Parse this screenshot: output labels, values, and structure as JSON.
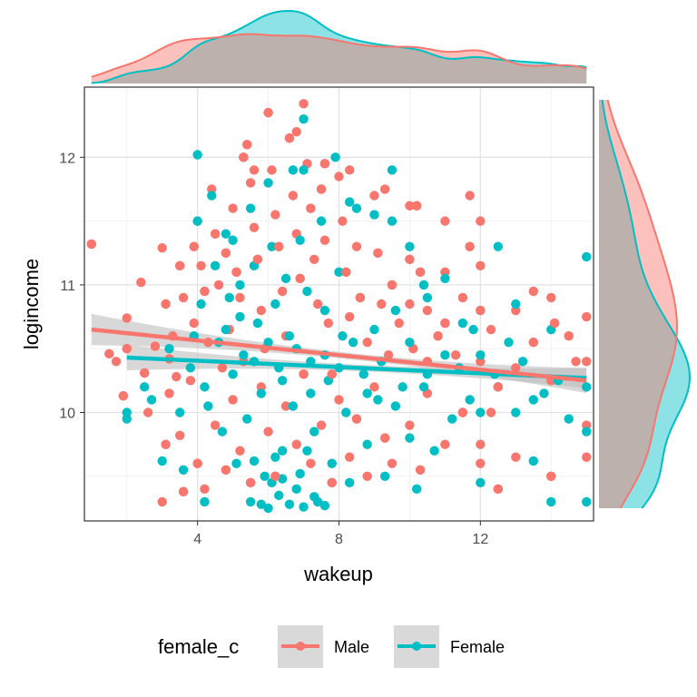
{
  "chart_data": {
    "type": "scatter",
    "xlabel": "wakeup",
    "ylabel": "logincome",
    "xlim": [
      0.8,
      15.2
    ],
    "ylim": [
      9.15,
      12.55
    ],
    "x_ticks": [
      4,
      8,
      12
    ],
    "y_ticks": [
      10,
      11,
      12
    ],
    "x_tick_labels": [
      "4",
      "8",
      "12"
    ],
    "y_tick_labels": [
      "10",
      "11",
      "12"
    ],
    "grid": true,
    "legend": {
      "title": "female_c",
      "position": "bottom",
      "entries": [
        "Male",
        "Female"
      ]
    },
    "colors": {
      "Male": "#F8766D",
      "Female": "#00BFC4",
      "band": "#BEBEBE"
    },
    "series": [
      {
        "name": "Male",
        "points": [
          [
            1,
            11.32
          ],
          [
            1.5,
            10.46
          ],
          [
            1.7,
            10.4
          ],
          [
            1.9,
            10.13
          ],
          [
            2,
            10.74
          ],
          [
            2.4,
            11.02
          ],
          [
            2.5,
            10.31
          ],
          [
            2.8,
            10.52
          ],
          [
            3,
            11.29
          ],
          [
            3.1,
            10.85
          ],
          [
            3.2,
            10.42
          ],
          [
            3.3,
            10.6
          ],
          [
            3.5,
            11.15
          ],
          [
            3.6,
            10.9
          ],
          [
            3.8,
            10.25
          ],
          [
            3.9,
            11.3
          ],
          [
            3.9,
            10.7
          ],
          [
            3.0,
            9.3
          ],
          [
            3.1,
            9.75
          ],
          [
            3.2,
            10.15
          ],
          [
            3.5,
            9.82
          ],
          [
            3.6,
            9.38
          ],
          [
            4.0,
            11.5
          ],
          [
            4.1,
            11.15
          ],
          [
            4.2,
            10.95
          ],
          [
            4.3,
            10.55
          ],
          [
            4.4,
            11.75
          ],
          [
            4.5,
            11.4
          ],
          [
            4.6,
            11.0
          ],
          [
            4.7,
            10.35
          ],
          [
            4.8,
            11.25
          ],
          [
            4.9,
            10.65
          ],
          [
            5.0,
            11.6
          ],
          [
            5.1,
            11.1
          ],
          [
            5.2,
            10.9
          ],
          [
            5.3,
            10.4
          ],
          [
            5.4,
            12.1
          ],
          [
            5.5,
            11.8
          ],
          [
            5.6,
            11.45
          ],
          [
            5.7,
            11.2
          ],
          [
            5.8,
            10.8
          ],
          [
            5.9,
            10.5
          ],
          [
            6.0,
            12.35
          ],
          [
            6.1,
            11.9
          ],
          [
            6.2,
            11.55
          ],
          [
            6.3,
            11.3
          ],
          [
            6.4,
            10.95
          ],
          [
            6.5,
            10.6
          ],
          [
            6.6,
            12.15
          ],
          [
            6.7,
            11.7
          ],
          [
            6.8,
            11.4
          ],
          [
            6.9,
            11.05
          ],
          [
            7.0,
            12.42
          ],
          [
            7.1,
            11.95
          ],
          [
            7.2,
            11.6
          ],
          [
            7.3,
            11.2
          ],
          [
            7.4,
            10.85
          ],
          [
            7.5,
            11.75
          ],
          [
            7.6,
            11.35
          ],
          [
            7.7,
            10.7
          ],
          [
            7.8,
            10.3
          ],
          [
            8.0,
            11.85
          ],
          [
            8.1,
            11.5
          ],
          [
            8.2,
            11.1
          ],
          [
            8.3,
            10.75
          ],
          [
            8.5,
            11.3
          ],
          [
            8.6,
            10.9
          ],
          [
            8.8,
            10.55
          ],
          [
            9.0,
            11.7
          ],
          [
            9.1,
            11.25
          ],
          [
            9.2,
            10.85
          ],
          [
            9.4,
            10.45
          ],
          [
            9.5,
            11.0
          ],
          [
            9.7,
            10.7
          ],
          [
            10.0,
            11.62
          ],
          [
            10.0,
            11.2
          ],
          [
            10.0,
            10.85
          ],
          [
            10.1,
            10.5
          ],
          [
            10.3,
            11.1
          ],
          [
            10.5,
            10.8
          ],
          [
            10.5,
            10.4
          ],
          [
            10.8,
            10.6
          ],
          [
            11.0,
            11.5
          ],
          [
            11.0,
            11.1
          ],
          [
            11.0,
            10.7
          ],
          [
            11.3,
            10.45
          ],
          [
            11.5,
            10.9
          ],
          [
            11.7,
            11.3
          ],
          [
            12.0,
            11.5
          ],
          [
            12.0,
            11.15
          ],
          [
            12.0,
            10.8
          ],
          [
            12.0,
            10.4
          ],
          [
            12.3,
            10.65
          ],
          [
            12.5,
            10.2
          ],
          [
            13.0,
            10.8
          ],
          [
            13.0,
            10.35
          ],
          [
            13.5,
            10.55
          ],
          [
            14.0,
            10.9
          ],
          [
            14.0,
            10.25
          ],
          [
            14.5,
            10.6
          ],
          [
            15.0,
            10.75
          ],
          [
            15.0,
            10.4
          ],
          [
            4.0,
            9.6
          ],
          [
            4.2,
            9.4
          ],
          [
            4.5,
            9.9
          ],
          [
            4.8,
            9.55
          ],
          [
            5.0,
            10.1
          ],
          [
            5.2,
            9.7
          ],
          [
            5.5,
            9.45
          ],
          [
            5.8,
            10.2
          ],
          [
            6.0,
            9.85
          ],
          [
            6.2,
            9.5
          ],
          [
            6.5,
            10.05
          ],
          [
            6.8,
            9.75
          ],
          [
            7.0,
            10.3
          ],
          [
            7.2,
            9.6
          ],
          [
            7.5,
            9.9
          ],
          [
            7.8,
            9.45
          ],
          [
            8.0,
            10.1
          ],
          [
            8.3,
            9.65
          ],
          [
            8.5,
            9.95
          ],
          [
            8.8,
            9.5
          ],
          [
            9.0,
            10.2
          ],
          [
            9.3,
            9.8
          ],
          [
            9.5,
            9.6
          ],
          [
            10.0,
            9.9
          ],
          [
            10.3,
            9.55
          ],
          [
            10.5,
            10.15
          ],
          [
            11.0,
            9.75
          ],
          [
            11.5,
            10.0
          ],
          [
            12.0,
            9.6
          ],
          [
            12.0,
            9.75
          ],
          [
            12.5,
            9.4
          ],
          [
            12.3,
            10.0
          ],
          [
            13.0,
            9.65
          ],
          [
            14.0,
            9.5
          ],
          [
            15.0,
            9.65
          ],
          [
            15.0,
            9.9
          ],
          [
            2,
            10.5
          ],
          [
            2.6,
            10.0
          ],
          [
            3.4,
            10.28
          ],
          [
            5.3,
            12.0
          ],
          [
            5.6,
            11.9
          ],
          [
            6.8,
            12.2
          ],
          [
            7.6,
            11.95
          ],
          [
            8.3,
            11.9
          ],
          [
            9.3,
            11.75
          ],
          [
            10.2,
            11.62
          ],
          [
            11.7,
            11.7
          ],
          [
            13.5,
            10.95
          ],
          [
            14.1,
            10.7
          ],
          [
            14.7,
            10.4
          ]
        ]
      },
      {
        "name": "Female",
        "points": [
          [
            2.0,
            10.0
          ],
          [
            2.0,
            9.95
          ],
          [
            2.5,
            10.2
          ],
          [
            2.7,
            10.1
          ],
          [
            3.0,
            9.62
          ],
          [
            3.2,
            10.5
          ],
          [
            3.5,
            10.0
          ],
          [
            3.6,
            9.55
          ],
          [
            3.8,
            10.35
          ],
          [
            4.0,
            12.02
          ],
          [
            4.0,
            11.5
          ],
          [
            4.1,
            10.85
          ],
          [
            4.2,
            10.2
          ],
          [
            4.2,
            9.3
          ],
          [
            4.4,
            11.7
          ],
          [
            4.5,
            11.15
          ],
          [
            4.6,
            10.55
          ],
          [
            4.7,
            9.85
          ],
          [
            4.8,
            11.4
          ],
          [
            4.9,
            10.9
          ],
          [
            5.0,
            10.3
          ],
          [
            5.1,
            9.6
          ],
          [
            5.2,
            11.0
          ],
          [
            5.3,
            10.45
          ],
          [
            5.4,
            9.95
          ],
          [
            5.5,
            11.6
          ],
          [
            5.6,
            11.15
          ],
          [
            5.7,
            10.7
          ],
          [
            5.8,
            10.15
          ],
          [
            5.9,
            9.5
          ],
          [
            6.0,
            11.8
          ],
          [
            6.1,
            11.3
          ],
          [
            6.2,
            10.85
          ],
          [
            6.3,
            10.35
          ],
          [
            6.4,
            9.7
          ],
          [
            6.5,
            11.05
          ],
          [
            6.6,
            10.6
          ],
          [
            6.7,
            10.05
          ],
          [
            6.8,
            9.4
          ],
          [
            6.9,
            11.35
          ],
          [
            7.0,
            12.3
          ],
          [
            7.0,
            11.9
          ],
          [
            7.1,
            10.95
          ],
          [
            7.2,
            10.4
          ],
          [
            7.3,
            9.85
          ],
          [
            7.4,
            9.3
          ],
          [
            7.5,
            11.5
          ],
          [
            7.6,
            10.8
          ],
          [
            7.7,
            10.25
          ],
          [
            7.8,
            9.6
          ],
          [
            8.0,
            11.1
          ],
          [
            8.1,
            10.6
          ],
          [
            8.2,
            10.0
          ],
          [
            8.3,
            9.45
          ],
          [
            8.5,
            11.6
          ],
          [
            8.6,
            10.9
          ],
          [
            8.7,
            10.3
          ],
          [
            8.8,
            9.75
          ],
          [
            9.0,
            10.65
          ],
          [
            9.1,
            10.1
          ],
          [
            9.3,
            9.5
          ],
          [
            9.5,
            11.9
          ],
          [
            9.5,
            11.5
          ],
          [
            9.6,
            10.8
          ],
          [
            9.8,
            10.2
          ],
          [
            10.0,
            11.3
          ],
          [
            10.0,
            10.55
          ],
          [
            10.0,
            9.8
          ],
          [
            10.2,
            9.4
          ],
          [
            10.5,
            10.9
          ],
          [
            10.5,
            10.3
          ],
          [
            10.7,
            9.7
          ],
          [
            11.0,
            11.05
          ],
          [
            11.0,
            10.45
          ],
          [
            11.2,
            9.95
          ],
          [
            11.5,
            10.7
          ],
          [
            11.7,
            10.1
          ],
          [
            12.0,
            10.45
          ],
          [
            12.0,
            10.0
          ],
          [
            12.0,
            9.45
          ],
          [
            12.5,
            11.3
          ],
          [
            12.5,
            10.2
          ],
          [
            13.0,
            10.85
          ],
          [
            13.0,
            10.0
          ],
          [
            13.5,
            10.1
          ],
          [
            13.5,
            9.62
          ],
          [
            14.0,
            10.65
          ],
          [
            14.0,
            9.3
          ],
          [
            14.5,
            9.95
          ],
          [
            15.0,
            11.22
          ],
          [
            15.0,
            10.2
          ],
          [
            15.0,
            9.85
          ],
          [
            15.0,
            9.3
          ],
          [
            5.5,
            9.3
          ],
          [
            5.8,
            9.28
          ],
          [
            6.0,
            9.25
          ],
          [
            6.3,
            9.35
          ],
          [
            6.6,
            9.28
          ],
          [
            7.0,
            9.26
          ],
          [
            7.3,
            9.34
          ],
          [
            7.6,
            9.27
          ],
          [
            6.1,
            9.45
          ],
          [
            6.4,
            9.48
          ],
          [
            6.9,
            9.52
          ],
          [
            5.6,
            9.62
          ],
          [
            6.2,
            9.65
          ],
          [
            7.1,
            9.7
          ],
          [
            4.8,
            10.65
          ],
          [
            5.2,
            10.75
          ],
          [
            5.6,
            10.4
          ],
          [
            6.0,
            10.55
          ],
          [
            6.4,
            10.25
          ],
          [
            6.8,
            10.5
          ],
          [
            7.2,
            10.15
          ],
          [
            7.6,
            10.45
          ],
          [
            8.0,
            10.35
          ],
          [
            8.4,
            10.55
          ],
          [
            8.8,
            10.15
          ],
          [
            9.2,
            10.4
          ],
          [
            9.6,
            10.05
          ],
          [
            10.4,
            10.2
          ],
          [
            11.4,
            10.35
          ],
          [
            12.4,
            10.3
          ],
          [
            13.2,
            10.4
          ],
          [
            14.2,
            10.25
          ],
          [
            3.9,
            10.6
          ],
          [
            4.3,
            10.05
          ],
          [
            5.0,
            11.35
          ],
          [
            6.7,
            11.9
          ],
          [
            7.9,
            12.0
          ],
          [
            8.3,
            11.65
          ],
          [
            9.0,
            11.55
          ],
          [
            10.4,
            11.0
          ],
          [
            11.8,
            10.65
          ],
          [
            12.8,
            10.55
          ],
          [
            13.8,
            10.15
          ]
        ]
      }
    ],
    "fit": {
      "Male": {
        "x": [
          1,
          15
        ],
        "y": [
          10.65,
          10.25
        ]
      },
      "Female": {
        "x": [
          2,
          15
        ],
        "y": [
          10.43,
          10.27
        ]
      }
    }
  }
}
